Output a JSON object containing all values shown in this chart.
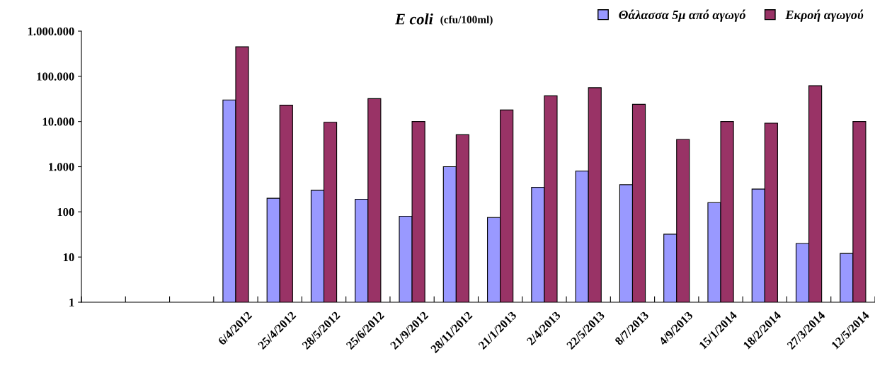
{
  "chart_data": {
    "type": "bar",
    "title": "E coli",
    "subtitle": "(cfu/100ml)",
    "categories": [
      null,
      null,
      null,
      "6/4/2012",
      "25/4/2012",
      "28/5/2012",
      "25/6/2012",
      "21/9/2012",
      "28/11/2012",
      "21/1/2013",
      "2/4/2013",
      "22/5/2013",
      "8/7/2013",
      "4/9/2013",
      "15/1/2014",
      "18/2/2014",
      "27/3/2014",
      "12/5/2014"
    ],
    "series": [
      {
        "name": "Θάλασσα 5μ από αγωγό",
        "color": "#9999ff",
        "values": [
          null,
          null,
          null,
          30000,
          200,
          300,
          190,
          80,
          1000,
          75,
          350,
          800,
          400,
          32,
          160,
          320,
          20,
          12
        ]
      },
      {
        "name": "Εκροή αγωγού",
        "color": "#993366",
        "values": [
          null,
          null,
          null,
          450000,
          23000,
          9600,
          32000,
          10000,
          5100,
          18000,
          37000,
          56000,
          24000,
          4000,
          10000,
          9200,
          62000,
          10000
        ]
      }
    ],
    "log": "y",
    "ylim": [
      1,
      1000000
    ],
    "yticks": [
      1,
      10,
      100,
      {
        "value": 1000,
        "label": "1.000"
      },
      {
        "value": 10000,
        "label": "10.000"
      },
      {
        "value": 100000,
        "label": "100.000"
      },
      {
        "value": 1000000,
        "label": "1.000.000"
      }
    ],
    "grid": false,
    "legend": "top right"
  }
}
